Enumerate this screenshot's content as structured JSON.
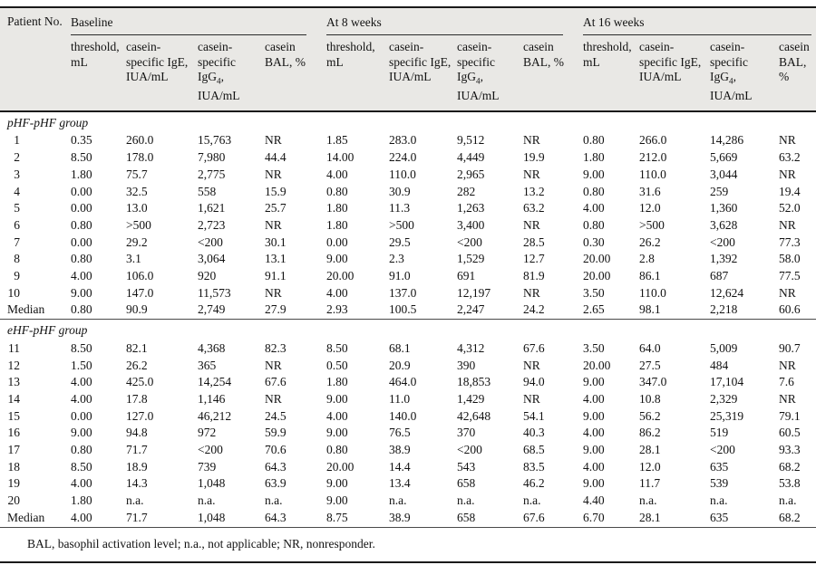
{
  "table": {
    "header": {
      "patient": "Patient No.",
      "groups": [
        {
          "key": "baseline",
          "label": "Baseline",
          "subcols": [
            {
              "key": "threshold",
              "pre": "threshold, mL",
              "sub": "",
              "post": ""
            },
            {
              "key": "ige",
              "pre": "casein-specific IgE, IUA/mL",
              "sub": "",
              "post": ""
            },
            {
              "key": "igg4",
              "pre": "casein-specific IgG",
              "sub": "4",
              "post": ", IUA/mL"
            },
            {
              "key": "bal",
              "pre": "casein BAL, %",
              "sub": "",
              "post": ""
            }
          ]
        },
        {
          "key": "week8",
          "label": "At 8 weeks",
          "subcols": [
            {
              "key": "threshold",
              "pre": "threshold, mL",
              "sub": "",
              "post": ""
            },
            {
              "key": "ige",
              "pre": "casein-specific IgE, IUA/mL",
              "sub": "",
              "post": ""
            },
            {
              "key": "igg4",
              "pre": "casein-specific IgG",
              "sub": "4",
              "post": ", IUA/mL"
            },
            {
              "key": "bal",
              "pre": "casein BAL, %",
              "sub": "",
              "post": ""
            }
          ]
        },
        {
          "key": "week16",
          "label": "At 16 weeks",
          "subcols": [
            {
              "key": "threshold",
              "pre": "threshold, mL",
              "sub": "",
              "post": ""
            },
            {
              "key": "ige",
              "pre": "casein-specific IgE, IUA/mL",
              "sub": "",
              "post": ""
            },
            {
              "key": "igg4",
              "pre": "casein-specific IgG",
              "sub": "4",
              "post": ", IUA/mL"
            },
            {
              "key": "bal",
              "pre": "casein BAL, %",
              "sub": "",
              "post": ""
            }
          ]
        }
      ]
    },
    "sections": [
      {
        "label": "pHF-pHF group",
        "rows": [
          {
            "patient": "1",
            "values": [
              "0.35",
              "260.0",
              "15,763",
              "NR",
              "1.85",
              "283.0",
              "9,512",
              "NR",
              "0.80",
              "266.0",
              "14,286",
              "NR"
            ]
          },
          {
            "patient": "2",
            "values": [
              "8.50",
              "178.0",
              "7,980",
              "44.4",
              "14.00",
              "224.0",
              "4,449",
              "19.9",
              "1.80",
              "212.0",
              "5,669",
              "63.2"
            ]
          },
          {
            "patient": "3",
            "values": [
              "1.80",
              "75.7",
              "2,775",
              "NR",
              "4.00",
              "110.0",
              "2,965",
              "NR",
              "9.00",
              "110.0",
              "3,044",
              "NR"
            ]
          },
          {
            "patient": "4",
            "values": [
              "0.00",
              "32.5",
              "558",
              "15.9",
              "0.80",
              "30.9",
              "282",
              "13.2",
              "0.80",
              "31.6",
              "259",
              "19.4"
            ]
          },
          {
            "patient": "5",
            "values": [
              "0.00",
              "13.0",
              "1,621",
              "25.7",
              "1.80",
              "11.3",
              "1,263",
              "63.2",
              "4.00",
              "12.0",
              "1,360",
              "52.0"
            ]
          },
          {
            "patient": "6",
            "values": [
              "0.80",
              ">500",
              "2,723",
              "NR",
              "1.80",
              ">500",
              "3,400",
              "NR",
              "0.80",
              ">500",
              "3,628",
              "NR"
            ]
          },
          {
            "patient": "7",
            "values": [
              "0.00",
              "29.2",
              "<200",
              "30.1",
              "0.00",
              "29.5",
              "<200",
              "28.5",
              "0.30",
              "26.2",
              "<200",
              "77.3"
            ]
          },
          {
            "patient": "8",
            "values": [
              "0.80",
              "3.1",
              "3,064",
              "13.1",
              "9.00",
              "2.3",
              "1,529",
              "12.7",
              "20.00",
              "2.8",
              "1,392",
              "58.0"
            ]
          },
          {
            "patient": "9",
            "values": [
              "4.00",
              "106.0",
              "920",
              "91.1",
              "20.00",
              "91.0",
              "691",
              "81.9",
              "20.00",
              "86.1",
              "687",
              "77.5"
            ]
          },
          {
            "patient": "10",
            "values": [
              "9.00",
              "147.0",
              "11,573",
              "NR",
              "4.00",
              "137.0",
              "12,197",
              "NR",
              "3.50",
              "110.0",
              "12,624",
              "NR"
            ]
          },
          {
            "patient": "Median",
            "values": [
              "0.80",
              "90.9",
              "2,749",
              "27.9",
              "2.93",
              "100.5",
              "2,247",
              "24.2",
              "2.65",
              "98.1",
              "2,218",
              "60.6"
            ]
          }
        ]
      },
      {
        "label": "eHF-pHF group",
        "rows": [
          {
            "patient": "11",
            "values": [
              "8.50",
              "82.1",
              "4,368",
              "82.3",
              "8.50",
              "68.1",
              "4,312",
              "67.6",
              "3.50",
              "64.0",
              "5,009",
              "90.7"
            ]
          },
          {
            "patient": "12",
            "values": [
              "1.50",
              "26.2",
              "365",
              "NR",
              "0.50",
              "20.9",
              "390",
              "NR",
              "20.00",
              "27.5",
              "484",
              "NR"
            ]
          },
          {
            "patient": "13",
            "values": [
              "4.00",
              "425.0",
              "14,254",
              "67.6",
              "1.80",
              "464.0",
              "18,853",
              "94.0",
              "9.00",
              "347.0",
              "17,104",
              "7.6"
            ]
          },
          {
            "patient": "14",
            "values": [
              "4.00",
              "17.8",
              "1,146",
              "NR",
              "9.00",
              "11.0",
              "1,429",
              "NR",
              "4.00",
              "10.8",
              "2,329",
              "NR"
            ]
          },
          {
            "patient": "15",
            "values": [
              "0.00",
              "127.0",
              "46,212",
              "24.5",
              "4.00",
              "140.0",
              "42,648",
              "54.1",
              "9.00",
              "56.2",
              "25,319",
              "79.1"
            ]
          },
          {
            "patient": "16",
            "values": [
              "9.00",
              "94.8",
              "972",
              "59.9",
              "9.00",
              "76.5",
              "370",
              "40.3",
              "4.00",
              "86.2",
              "519",
              "60.5"
            ]
          },
          {
            "patient": "17",
            "values": [
              "0.80",
              "71.7",
              "<200",
              "70.6",
              "0.80",
              "38.9",
              "<200",
              "68.5",
              "9.00",
              "28.1",
              "<200",
              "93.3"
            ]
          },
          {
            "patient": "18",
            "values": [
              "8.50",
              "18.9",
              "739",
              "64.3",
              "20.00",
              "14.4",
              "543",
              "83.5",
              "4.00",
              "12.0",
              "635",
              "68.2"
            ]
          },
          {
            "patient": "19",
            "values": [
              "4.00",
              "14.3",
              "1,048",
              "63.9",
              "9.00",
              "13.4",
              "658",
              "46.2",
              "9.00",
              "11.7",
              "539",
              "53.8"
            ]
          },
          {
            "patient": "20",
            "values": [
              "1.80",
              "n.a.",
              "n.a.",
              "n.a.",
              "9.00",
              "n.a.",
              "n.a.",
              "n.a.",
              "4.40",
              "n.a.",
              "n.a.",
              "n.a."
            ]
          },
          {
            "patient": "Median",
            "values": [
              "4.00",
              "71.7",
              "1,048",
              "64.3",
              "8.75",
              "38.9",
              "658",
              "67.6",
              "6.70",
              "28.1",
              "635",
              "68.2"
            ]
          }
        ]
      }
    ],
    "footnote": "BAL, basophil activation level; n.a., not applicable; NR, nonresponder."
  }
}
